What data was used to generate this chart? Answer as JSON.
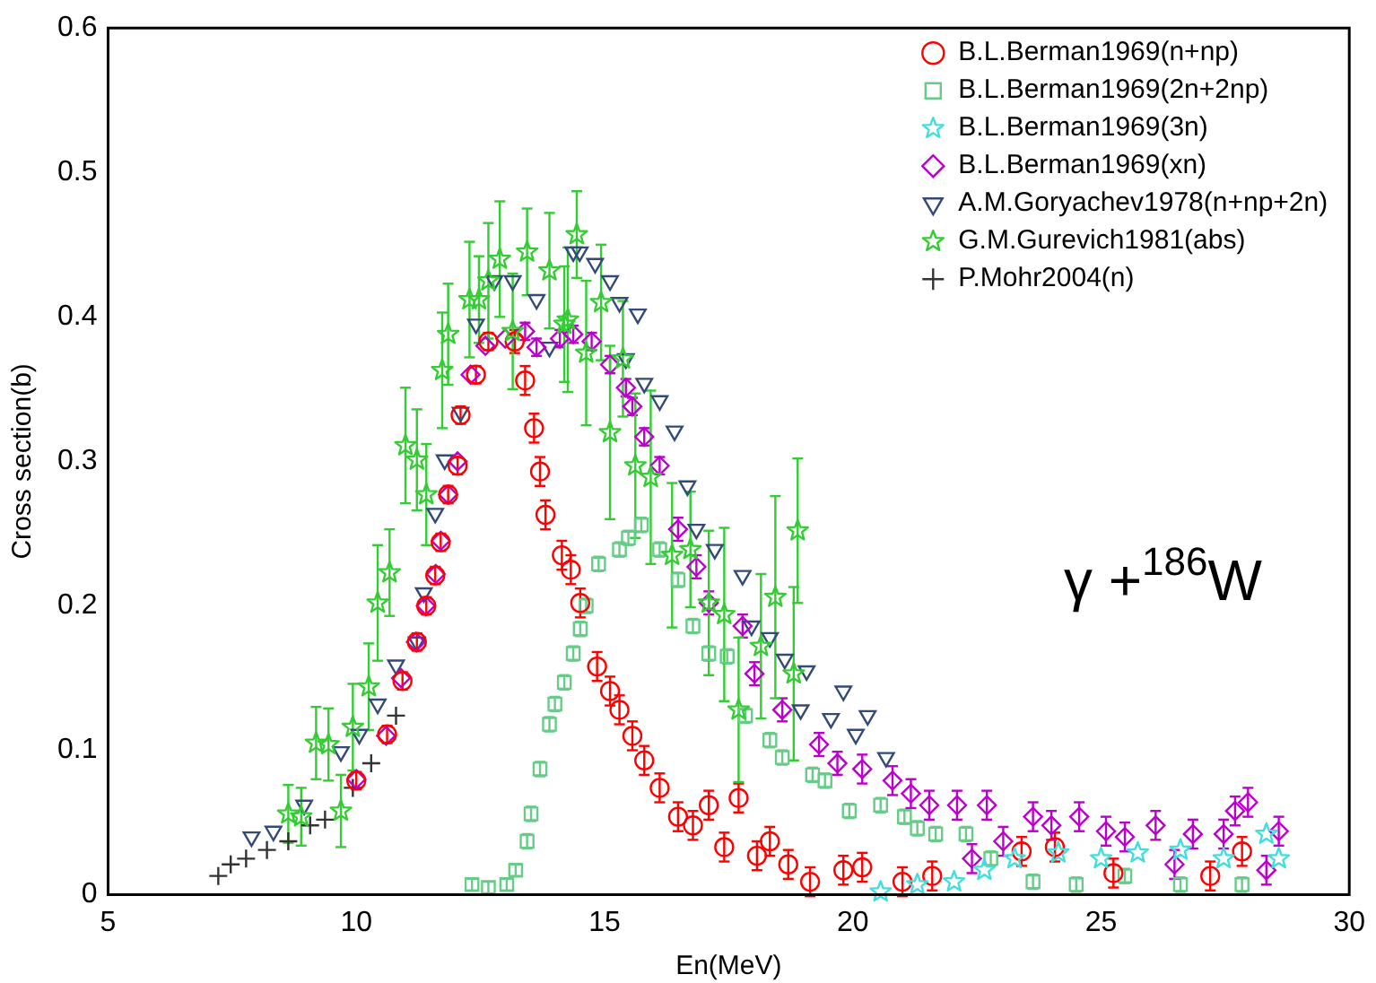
{
  "chart_data": {
    "type": "scatter",
    "xlabel": "En(MeV)",
    "ylabel": "Cross section(b)",
    "xlim": [
      5,
      30
    ],
    "ylim": [
      0,
      0.6
    ],
    "xticks": [
      5,
      10,
      15,
      20,
      25,
      30
    ],
    "yticks": [
      0,
      0.1,
      0.2,
      0.3,
      0.4,
      0.5,
      0.6
    ],
    "grid": false,
    "legend": "top right",
    "annotations": [
      "γ +$^{186}$W"
    ],
    "series": [
      {
        "name": "B.L.Berman1969(n+np)",
        "color": "#ff0000",
        "marker": "circle",
        "x": [
          10.0,
          10.62,
          10.93,
          11.22,
          11.41,
          11.59,
          11.7,
          11.85,
          12.04,
          12.1,
          12.41,
          12.66,
          13.19,
          13.4,
          13.58,
          13.7,
          13.81,
          14.14,
          14.32,
          14.51,
          14.85,
          15.11,
          15.3,
          15.56,
          15.8,
          16.11,
          16.48,
          16.78,
          17.1,
          17.41,
          17.7,
          18.07,
          18.33,
          18.7,
          19.14,
          19.81,
          20.19,
          21.0,
          21.6,
          23.4,
          24.07,
          25.25,
          27.2,
          27.84
        ],
        "values": [
          0.079,
          0.111,
          0.148,
          0.175,
          0.2,
          0.221,
          0.244,
          0.277,
          0.297,
          0.332,
          0.36,
          0.383,
          0.383,
          0.356,
          0.323,
          0.293,
          0.263,
          0.235,
          0.225,
          0.202,
          0.158,
          0.141,
          0.128,
          0.11,
          0.093,
          0.074,
          0.054,
          0.048,
          0.062,
          0.033,
          0.067,
          0.027,
          0.037,
          0.021,
          0.009,
          0.017,
          0.019,
          0.009,
          0.013,
          0.03,
          0.033,
          0.015,
          0.013,
          0.03
        ],
        "errors": [
          0.006,
          0.006,
          0.006,
          0.006,
          0.006,
          0.006,
          0.006,
          0.006,
          0.006,
          0.006,
          0.006,
          0.006,
          0.008,
          0.01,
          0.01,
          0.01,
          0.01,
          0.01,
          0.01,
          0.01,
          0.01,
          0.01,
          0.01,
          0.01,
          0.01,
          0.01,
          0.01,
          0.01,
          0.01,
          0.01,
          0.01,
          0.01,
          0.01,
          0.01,
          0.01,
          0.01,
          0.01,
          0.01,
          0.01,
          0.01,
          0.01,
          0.01,
          0.01,
          0.01
        ]
      },
      {
        "name": "B.L.Berman1969(2n+2np)",
        "color": "#66cc88",
        "marker": "square",
        "x": [
          12.33,
          12.66,
          13.03,
          13.21,
          13.44,
          13.52,
          13.7,
          13.89,
          14.0,
          14.19,
          14.37,
          14.51,
          14.63,
          14.88,
          15.3,
          15.48,
          15.74,
          16.11,
          16.48,
          16.78,
          17.1,
          17.47,
          17.84,
          18.33,
          18.58,
          19.19,
          19.44,
          19.93,
          20.56,
          21.04,
          21.3,
          21.67,
          22.28,
          22.78,
          23.63,
          24.5,
          25.48,
          26.6,
          27.84
        ],
        "values": [
          0.007,
          0.005,
          0.007,
          0.017,
          0.037,
          0.056,
          0.087,
          0.118,
          0.132,
          0.147,
          0.167,
          0.184,
          0.2,
          0.229,
          0.239,
          0.247,
          0.256,
          0.239,
          0.218,
          0.186,
          0.167,
          0.165,
          0.124,
          0.107,
          0.095,
          0.083,
          0.079,
          0.058,
          0.062,
          0.054,
          0.046,
          0.042,
          0.042,
          0.025,
          0.009,
          0.007,
          0.013,
          0.007,
          0.007
        ],
        "errors": [
          0.004,
          0.004,
          0.004,
          0.004,
          0.005,
          0.005,
          0.005,
          0.005,
          0.005,
          0.005,
          0.005,
          0.005,
          0.005,
          0.005,
          0.005,
          0.005,
          0.005,
          0.005,
          0.005,
          0.005,
          0.005,
          0.005,
          0.005,
          0.005,
          0.005,
          0.005,
          0.005,
          0.005,
          0.005,
          0.005,
          0.005,
          0.005,
          0.005,
          0.005,
          0.005,
          0.005,
          0.005,
          0.005,
          0.005
        ]
      },
      {
        "name": "B.L.Berman1969(3n)",
        "color": "#44dddd",
        "marker": "star",
        "x": [
          20.56,
          21.3,
          22.04,
          22.65,
          23.26,
          24.14,
          25.0,
          25.74,
          26.6,
          27.47,
          28.33,
          28.58
        ],
        "values": [
          0.002,
          0.007,
          0.009,
          0.017,
          0.025,
          0.029,
          0.025,
          0.029,
          0.031,
          0.025,
          0.042,
          0.025
        ]
      },
      {
        "name": "B.L.Berman1969(xn)",
        "color": "#bb00cc",
        "marker": "diamond",
        "x": [
          10.0,
          10.6,
          10.9,
          11.2,
          11.4,
          11.6,
          11.7,
          11.85,
          12.04,
          12.3,
          12.6,
          13.0,
          13.4,
          13.63,
          14.1,
          14.37,
          14.74,
          15.11,
          15.43,
          15.56,
          15.8,
          16.11,
          16.48,
          16.85,
          17.1,
          17.78,
          18.02,
          18.58,
          19.32,
          19.69,
          20.19,
          20.8,
          21.17,
          21.54,
          22.1,
          22.4,
          22.7,
          23.03,
          23.63,
          24.0,
          24.56,
          25.1,
          25.48,
          26.1,
          26.48,
          26.85,
          27.47,
          27.7,
          27.96,
          28.33,
          28.58
        ],
        "values": [
          0.08,
          0.11,
          0.15,
          0.175,
          0.2,
          0.222,
          0.245,
          0.277,
          0.3,
          0.36,
          0.38,
          0.385,
          0.39,
          0.379,
          0.385,
          0.388,
          0.383,
          0.367,
          0.351,
          0.338,
          0.317,
          0.297,
          0.253,
          0.227,
          0.202,
          0.186,
          0.153,
          0.128,
          0.104,
          0.091,
          0.087,
          0.079,
          0.07,
          0.062,
          0.062,
          0.025,
          0.062,
          0.037,
          0.054,
          0.048,
          0.054,
          0.044,
          0.04,
          0.048,
          0.021,
          0.042,
          0.042,
          0.058,
          0.064,
          0.017,
          0.044
        ],
        "errors": [
          null,
          null,
          null,
          null,
          null,
          null,
          null,
          null,
          null,
          null,
          null,
          null,
          0.006,
          0.006,
          0.006,
          0.006,
          0.006,
          0.006,
          0.006,
          0.006,
          0.006,
          0.006,
          0.008,
          0.008,
          0.008,
          0.008,
          0.008,
          0.008,
          0.008,
          0.008,
          0.01,
          0.01,
          0.01,
          0.01,
          0.01,
          0.01,
          0.01,
          0.01,
          0.01,
          0.01,
          0.01,
          0.01,
          0.01,
          0.01,
          0.01,
          0.01,
          0.01,
          0.01,
          0.01,
          0.01,
          0.01
        ]
      },
      {
        "name": "A.M.Goryachev1978(n+np+2n)",
        "color": "#334a77",
        "marker": "triangle",
        "x": [
          7.89,
          8.33,
          8.95,
          9.69,
          10.06,
          10.43,
          10.8,
          11.22,
          11.36,
          11.59,
          11.78,
          12.1,
          12.41,
          12.78,
          13.15,
          13.63,
          13.89,
          14.37,
          14.5,
          14.81,
          15.11,
          15.3,
          15.67,
          15.43,
          15.8,
          16.11,
          16.41,
          16.67,
          16.85,
          17.22,
          17.78,
          17.96,
          18.33,
          18.63,
          19.07,
          18.95,
          19.56,
          19.81,
          20.06,
          20.3,
          20.67
        ],
        "values": [
          0.04,
          0.044,
          0.062,
          0.099,
          0.111,
          0.132,
          0.159,
          0.175,
          0.209,
          0.264,
          0.301,
          0.334,
          0.395,
          0.425,
          0.425,
          0.412,
          0.379,
          0.445,
          0.445,
          0.437,
          0.425,
          0.41,
          0.402,
          0.371,
          0.354,
          0.342,
          0.321,
          0.283,
          0.253,
          0.239,
          0.221,
          0.186,
          0.178,
          0.163,
          0.155,
          0.128,
          0.122,
          0.141,
          0.111,
          0.124,
          0.095
        ]
      },
      {
        "name": "G.M.Gurevich1981(abs)",
        "color": "#33cc33",
        "marker": "star",
        "x": [
          8.63,
          8.89,
          9.19,
          9.44,
          9.69,
          9.93,
          10.25,
          10.43,
          10.67,
          10.99,
          11.22,
          11.41,
          11.73,
          11.85,
          12.28,
          12.47,
          12.66,
          12.89,
          13.15,
          13.44,
          13.89,
          14.19,
          14.26,
          14.44,
          14.63,
          14.93,
          15.11,
          15.37,
          15.62,
          15.93,
          16.36,
          16.73,
          17.1,
          17.41,
          17.7,
          18.15,
          18.44,
          18.81,
          18.89
        ],
        "values": [
          0.056,
          0.054,
          0.105,
          0.104,
          0.058,
          0.116,
          0.144,
          0.202,
          0.223,
          0.311,
          0.301,
          0.277,
          0.363,
          0.388,
          0.412,
          0.412,
          0.425,
          0.44,
          0.39,
          0.445,
          0.432,
          0.395,
          0.398,
          0.457,
          0.375,
          0.41,
          0.32,
          0.371,
          0.297,
          0.289,
          0.235,
          0.239,
          0.202,
          0.194,
          0.128,
          0.172,
          0.206,
          0.153,
          0.252
        ],
        "errors": [
          0.02,
          0.02,
          0.025,
          0.025,
          0.025,
          0.03,
          0.03,
          0.04,
          0.03,
          0.04,
          0.035,
          0.035,
          0.04,
          0.035,
          0.04,
          0.03,
          0.04,
          0.04,
          0.04,
          0.03,
          0.04,
          0.04,
          0.05,
          0.03,
          0.05,
          0.04,
          0.06,
          0.04,
          0.05,
          0.06,
          0.05,
          0.04,
          0.05,
          0.06,
          0.05,
          0.05,
          0.07,
          0.06,
          0.05
        ]
      },
      {
        "name": "P.Mohr2004(n)",
        "color": "#333333",
        "marker": "cross",
        "x": [
          7.22,
          7.47,
          7.78,
          8.2,
          8.63,
          9.07,
          9.37,
          9.93,
          10.3,
          10.8
        ],
        "values": [
          0.013,
          0.021,
          0.025,
          0.031,
          0.037,
          0.048,
          0.052,
          0.074,
          0.091,
          0.124
        ]
      }
    ]
  }
}
